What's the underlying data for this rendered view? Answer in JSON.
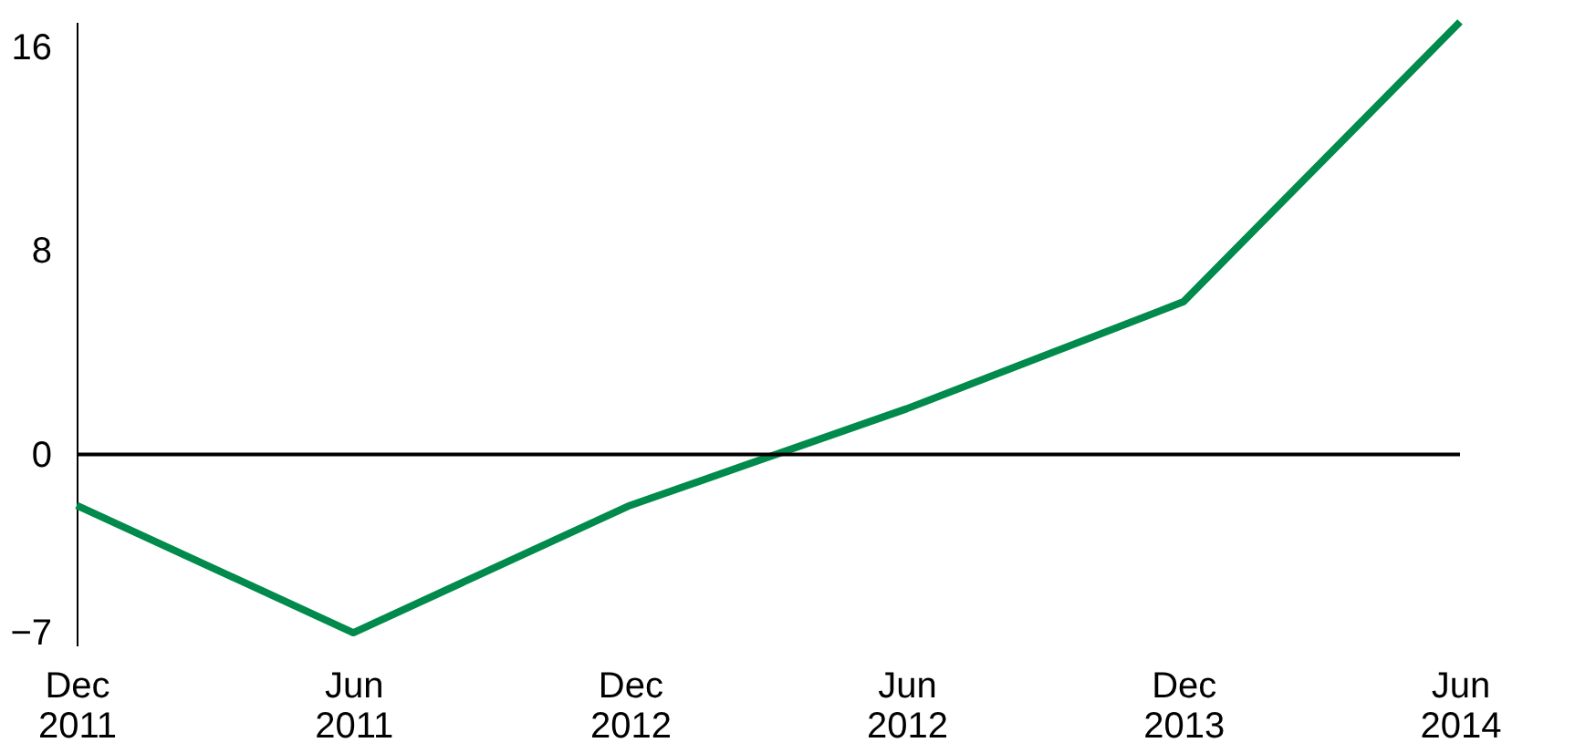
{
  "chart_data": {
    "type": "line",
    "categories": [
      "Dec 2011",
      "Jun 2011",
      "Dec 2012",
      "Jun 2012",
      "Dec 2013",
      "Jun 2014"
    ],
    "series": [
      {
        "color": "#008a4b",
        "values": [
          -2,
          -7,
          -2,
          1.8,
          6,
          17
        ]
      }
    ],
    "ylim": [
      -7.5,
      17
    ],
    "yticks": [
      -7,
      0,
      8,
      16
    ],
    "ref_lines": [
      {
        "axis": "y",
        "value": 0,
        "color": "#000000"
      }
    ],
    "grid": false,
    "marker": "none",
    "line_style": "solid"
  }
}
